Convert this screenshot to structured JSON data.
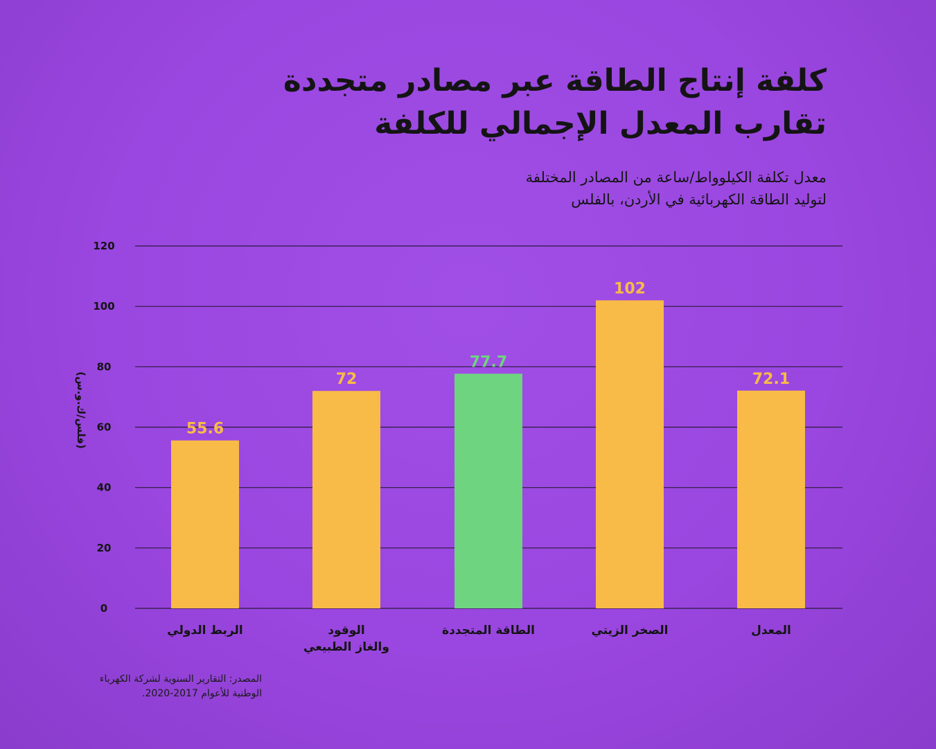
{
  "title_lines": [
    "كلفة إنتاج الطاقة عبر مصادر متجددة",
    "تقارب المعدل الإجمالي للكلفة"
  ],
  "subtitle_lines": [
    "معدل تكلفة الكيلوواط/ساعة من المصادر المختلفة",
    "لتوليد الطاقة الكهربائية في الأردن، بالفلس"
  ],
  "source_lines": [
    "المصدر: التقارير السنوية لشركة الكهرباء",
    "الوطنية للأعوام 2017-2020."
  ],
  "colors": {
    "bar_default": "#f8bb47",
    "bar_highlight": "#6ed47f",
    "label_default": "#f8bb47",
    "label_highlight": "#6ed47f",
    "axis_text": "#141414",
    "gridline": "#2a1a3a"
  },
  "chart_data": {
    "type": "bar",
    "categories": [
      [
        "الربط الدولي"
      ],
      [
        "الوقود",
        "والغاز الطبيعي"
      ],
      [
        "الطاقة المتجددة"
      ],
      [
        "الصخر الزيتي"
      ],
      [
        "المعدل"
      ]
    ],
    "values": [
      55.6,
      72,
      77.7,
      102,
      72.1
    ],
    "value_labels": [
      "55.6",
      "72",
      "77.7",
      "102",
      "72.1"
    ],
    "highlight_index": 2,
    "ylabel": "(فلس/ك.و.س)",
    "ylim": [
      0,
      120
    ],
    "yticks": [
      0,
      20,
      40,
      60,
      80,
      100,
      120
    ],
    "grid": true
  }
}
